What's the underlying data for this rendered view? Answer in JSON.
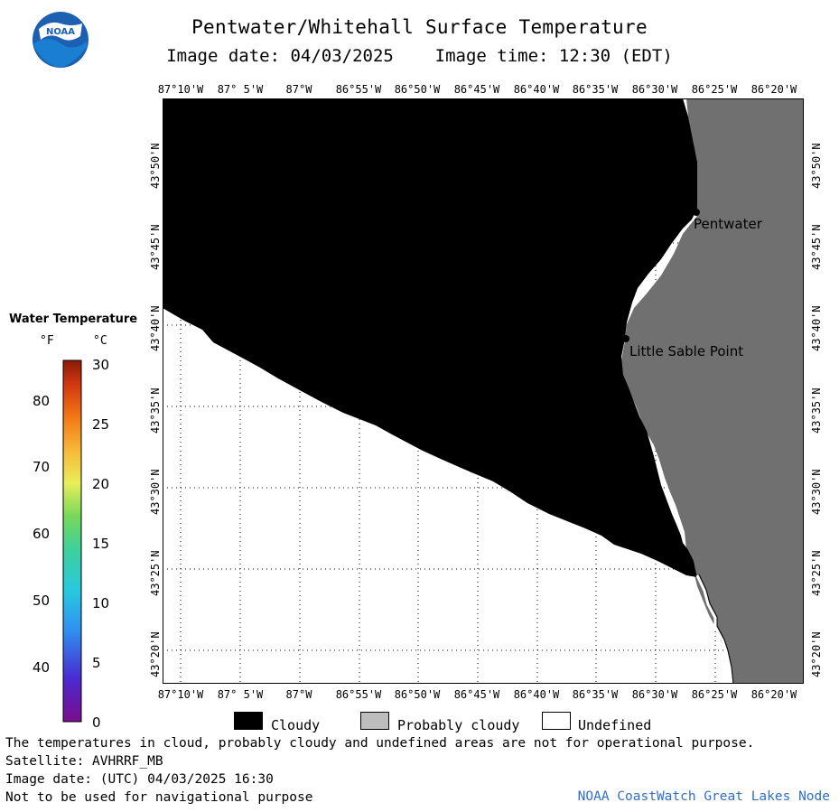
{
  "header": {
    "title": "Pentwater/Whitehall Surface Temperature",
    "image_date_label": "Image date: 04/03/2025",
    "image_time_label": "Image time: 12:30 (EDT)"
  },
  "logo": {
    "text": "NOAA",
    "icon": "noaa-logo"
  },
  "longitude_labels": [
    "87°10'W",
    "87° 5'W",
    "87°W",
    "86°55'W",
    "86°50'W",
    "86°45'W",
    "86°40'W",
    "86°35'W",
    "86°30'W",
    "86°25'W",
    "86°20'W"
  ],
  "latitude_labels": [
    "43°50'N",
    "43°45'N",
    "43°40'N",
    "43°35'N",
    "43°30'N",
    "43°25'N",
    "43°20'N"
  ],
  "places": [
    {
      "name": "Pentwater"
    },
    {
      "name": "Little Sable Point"
    }
  ],
  "colorbar": {
    "title": "Water Temperature",
    "unit_f": "°F",
    "unit_c": "°C",
    "f_labels": [
      "80",
      "70",
      "60",
      "50",
      "40"
    ],
    "c_labels": [
      "30",
      "25",
      "20",
      "15",
      "10",
      "5",
      "0"
    ],
    "c_range": [
      0,
      30
    ]
  },
  "key": [
    {
      "label": "Cloudy",
      "color": "#000000"
    },
    {
      "label": "Probably cloudy",
      "color": "#bdbdbd"
    },
    {
      "label": "Undefined",
      "color": "#ffffff"
    }
  ],
  "colors": {
    "land": "#707070",
    "cloud": "#000000",
    "undefined": "#ffffff"
  },
  "footer": {
    "note": "The temperatures in cloud, probably cloudy and undefined areas are not for operational purpose.",
    "satellite": "Satellite: AVHRRF_MB",
    "utc_date": "Image date: (UTC) 04/03/2025  16:30",
    "navigation": "Not to be used for navigational purpose",
    "credit": "NOAA CoastWatch Great Lakes Node"
  }
}
